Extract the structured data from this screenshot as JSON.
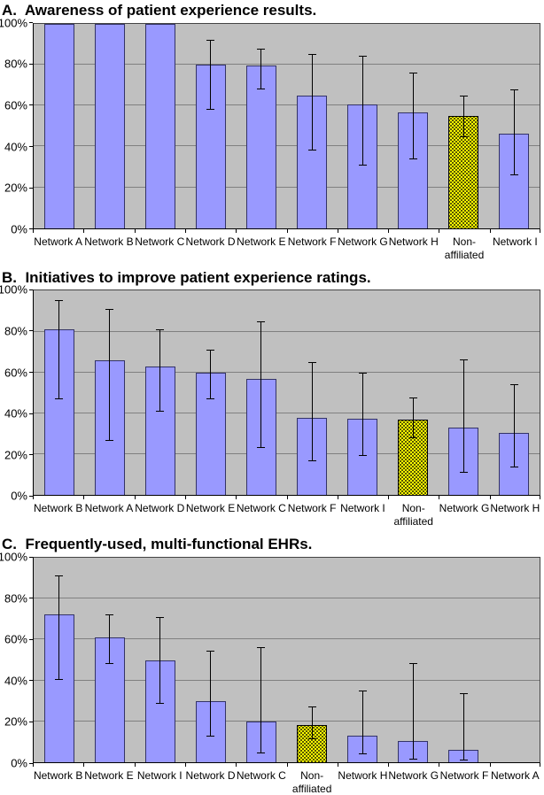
{
  "figure": {
    "panels": [
      {
        "title_display": "A.  Awareness of patient experience results."
      },
      {
        "title_display": "B.  Initiatives to improve patient experience ratings."
      },
      {
        "title_display": "C.  Frequently-used, multi-functional EHRs."
      }
    ]
  },
  "chart_data": [
    {
      "type": "bar",
      "title": "A. Awareness of patient experience results.",
      "categories": [
        "Network A",
        "Network B",
        "Network C",
        "Network D",
        "Network E",
        "Network F",
        "Network G",
        "Network H",
        "Non-\naffiliated",
        "Network I"
      ],
      "values": [
        100,
        100,
        100,
        80,
        79.5,
        65,
        60.5,
        56.5,
        55,
        46
      ],
      "error_low": [
        null,
        null,
        null,
        58,
        68,
        38,
        31,
        34,
        44.5,
        26
      ],
      "error_high": [
        null,
        null,
        null,
        92,
        87.5,
        85,
        84,
        76,
        64.5,
        67.5
      ],
      "highlight_index": 8,
      "ylabel": "",
      "xlabel": "",
      "ylim": [
        0,
        100
      ],
      "ytick_step": 20,
      "ytick_labels": [
        "0%",
        "20%",
        "40%",
        "60%",
        "80%",
        "100%"
      ],
      "grid": true,
      "legend": "none",
      "bar_color": "#9999ff",
      "highlight_color": "#ffff00",
      "plot_bg": "#c0c0c0"
    },
    {
      "type": "bar",
      "title": "B. Initiatives to improve patient experience ratings.",
      "categories": [
        "Network B",
        "Network A",
        "Network D",
        "Network E",
        "Network C",
        "Network F",
        "Network I",
        "Non-\naffiliated",
        "Network G",
        "Network H"
      ],
      "values": [
        81,
        66,
        63,
        60,
        57,
        38,
        37.5,
        37,
        33,
        30.5
      ],
      "error_low": [
        47,
        27,
        41,
        47,
        23.5,
        17,
        19.5,
        28,
        11,
        14
      ],
      "error_high": [
        95,
        91,
        81,
        71,
        85,
        65,
        59.5,
        47.5,
        66,
        54
      ],
      "highlight_index": 7,
      "ylabel": "",
      "xlabel": "",
      "ylim": [
        0,
        100
      ],
      "ytick_step": 20,
      "ytick_labels": [
        "0%",
        "20%",
        "40%",
        "60%",
        "80%",
        "100%"
      ],
      "grid": true,
      "legend": "none",
      "bar_color": "#9999ff",
      "highlight_color": "#ffff00",
      "plot_bg": "#c0c0c0"
    },
    {
      "type": "bar",
      "title": "C. Frequently-used, multi-functional EHRs.",
      "categories": [
        "Network B",
        "Network E",
        "Network I",
        "Network D",
        "Network C",
        "Non-\naffiliated",
        "Network H",
        "Network G",
        "Network F",
        "Network A"
      ],
      "values": [
        72.5,
        61,
        50,
        30,
        20,
        18,
        13,
        10.5,
        6,
        0
      ],
      "error_low": [
        40.5,
        48.5,
        29,
        13,
        4.5,
        11.5,
        4,
        1.5,
        1,
        null
      ],
      "error_high": [
        91,
        72,
        71,
        54.5,
        56,
        27,
        35,
        48.5,
        33.5,
        null
      ],
      "highlight_index": 5,
      "ylabel": "",
      "xlabel": "",
      "ylim": [
        0,
        100
      ],
      "ytick_step": 20,
      "ytick_labels": [
        "0%",
        "20%",
        "40%",
        "60%",
        "80%",
        "100%"
      ],
      "grid": true,
      "legend": "none",
      "bar_color": "#9999ff",
      "highlight_color": "#ffff00",
      "plot_bg": "#c0c0c0"
    }
  ]
}
